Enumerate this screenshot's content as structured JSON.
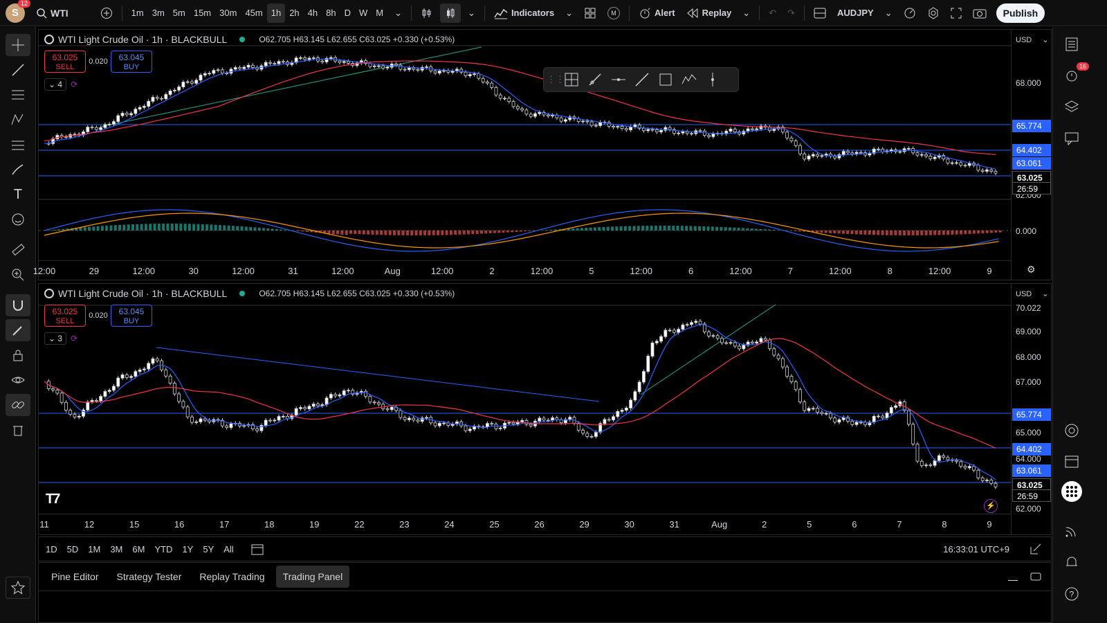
{
  "topbar": {
    "avatar_letter": "S",
    "avatar_badge": "12",
    "symbol": "WTI",
    "intervals": [
      "1m",
      "3m",
      "5m",
      "15m",
      "30m",
      "45m",
      "1h",
      "2h",
      "4h",
      "8h",
      "D",
      "W",
      "M"
    ],
    "active_interval": "1h",
    "indicators": "Indicators",
    "alert": "Alert",
    "replay": "Replay",
    "pair": "AUDJPY",
    "publish": "Publish",
    "m_badge": "M"
  },
  "panes": [
    {
      "title": "WTI Light Crude Oil · 1h · BLACKBULL",
      "ohlc": "O62.705 H63.145 L62.655 C63.025 +0.330 (+0.53%)",
      "sell_price": "63.025",
      "sell_label": "SELL",
      "spread": "0.020",
      "buy_price": "63.045",
      "buy_label": "BUY",
      "ind_count": "4",
      "currency": "USD",
      "price_labels": [
        "68.000",
        "62.000",
        "0.000"
      ],
      "tags": [
        {
          "text": "65.774",
          "color": "#2962ff"
        },
        {
          "text": "64.402",
          "color": "#2962ff"
        },
        {
          "text": "63.061",
          "color": "#2962ff"
        },
        {
          "text": "63.025",
          "color": "#000"
        },
        {
          "text": "26:59",
          "color": "#000"
        }
      ],
      "time_labels": [
        "12:00",
        "29",
        "12:00",
        "30",
        "12:00",
        "31",
        "12:00",
        "Aug",
        "12:00",
        "2",
        "12:00",
        "5",
        "12:00",
        "6",
        "12:00",
        "7",
        "12:00",
        "8",
        "12:00",
        "9"
      ]
    },
    {
      "title": "WTI Light Crude Oil · 1h · BLACKBULL",
      "ohlc": "O62.705 H63.145 L62.655 C63.025 +0.330 (+0.53%)",
      "sell_price": "63.025",
      "sell_label": "SELL",
      "spread": "0.020",
      "buy_price": "63.045",
      "buy_label": "BUY",
      "ind_count": "3",
      "currency": "USD",
      "price_labels": [
        "70.022",
        "69.000",
        "68.000",
        "67.000",
        "65.000",
        "64.000",
        "62.000"
      ],
      "tags": [
        {
          "text": "65.774",
          "color": "#2962ff"
        },
        {
          "text": "64.402",
          "color": "#2962ff"
        },
        {
          "text": "63.061",
          "color": "#2962ff"
        },
        {
          "text": "63.025",
          "color": "#000"
        },
        {
          "text": "26:59",
          "color": "#000"
        }
      ],
      "time_labels": [
        "11",
        "12",
        "15",
        "16",
        "17",
        "18",
        "19",
        "22",
        "23",
        "24",
        "25",
        "26",
        "29",
        "30",
        "31",
        "Aug",
        "2",
        "5",
        "6",
        "7",
        "8",
        "9"
      ]
    }
  ],
  "bottom": {
    "ranges": [
      "1D",
      "5D",
      "1M",
      "3M",
      "6M",
      "YTD",
      "1Y",
      "5Y",
      "All"
    ],
    "clock": "16:33:01 UTC+9"
  },
  "panel_tabs": [
    "Pine Editor",
    "Strategy Tester",
    "Replay Trading",
    "Trading Panel"
  ],
  "active_panel_tab": "Trading Panel",
  "right_badge": "16",
  "colors": {
    "up": "#ffffff",
    "down": "#000000",
    "ema_fast": "#2962ff",
    "ema_slow": "#f23645",
    "hline": "#2962ff",
    "trend": "#22ab94"
  }
}
